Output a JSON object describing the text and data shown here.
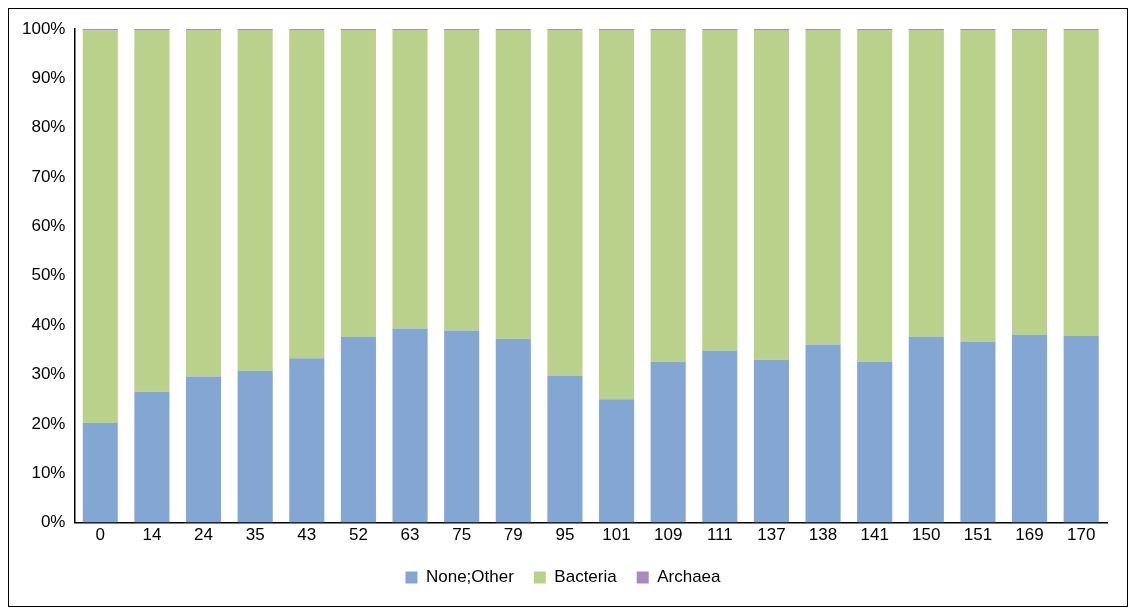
{
  "chart_data": {
    "type": "bar",
    "stacked": true,
    "categories": [
      "0",
      "14",
      "24",
      "35",
      "43",
      "52",
      "63",
      "75",
      "79",
      "95",
      "101",
      "109",
      "111",
      "137",
      "138",
      "141",
      "150",
      "151",
      "169",
      "170"
    ],
    "series": [
      {
        "name": "None;Other",
        "color": "#84a6d2",
        "values": [
          20.2,
          26.5,
          29.6,
          30.7,
          33.3,
          37.6,
          39.3,
          38.9,
          37.2,
          29.8,
          25.0,
          32.6,
          34.8,
          33.0,
          36.1,
          32.6,
          37.6,
          36.7,
          38.0,
          37.8
        ]
      },
      {
        "name": "Bacteria",
        "color": "#b9d18b",
        "values": [
          79.5,
          73.3,
          70.2,
          69.1,
          66.5,
          62.2,
          60.5,
          60.9,
          62.6,
          70.0,
          74.8,
          67.2,
          65.0,
          66.8,
          63.7,
          67.2,
          62.2,
          63.1,
          61.8,
          62.0
        ]
      },
      {
        "name": "Archaea",
        "color": "#a68bc0",
        "values": [
          0.3,
          0.2,
          0.2,
          0.2,
          0.2,
          0.2,
          0.2,
          0.2,
          0.2,
          0.2,
          0.2,
          0.2,
          0.2,
          0.2,
          0.2,
          0.2,
          0.2,
          0.2,
          0.2,
          0.2
        ]
      }
    ],
    "ylim": [
      0,
      100
    ],
    "yticks": [
      {
        "value": 0,
        "label": "0%"
      },
      {
        "value": 10,
        "label": "10%"
      },
      {
        "value": 20,
        "label": "20%"
      },
      {
        "value": 30,
        "label": "30%"
      },
      {
        "value": 40,
        "label": "40%"
      },
      {
        "value": 50,
        "label": "50%"
      },
      {
        "value": 60,
        "label": "60%"
      },
      {
        "value": 70,
        "label": "70%"
      },
      {
        "value": 80,
        "label": "80%"
      },
      {
        "value": 90,
        "label": "90%"
      },
      {
        "value": 100,
        "label": "100%"
      }
    ],
    "grid": false,
    "legend": "bottom"
  }
}
